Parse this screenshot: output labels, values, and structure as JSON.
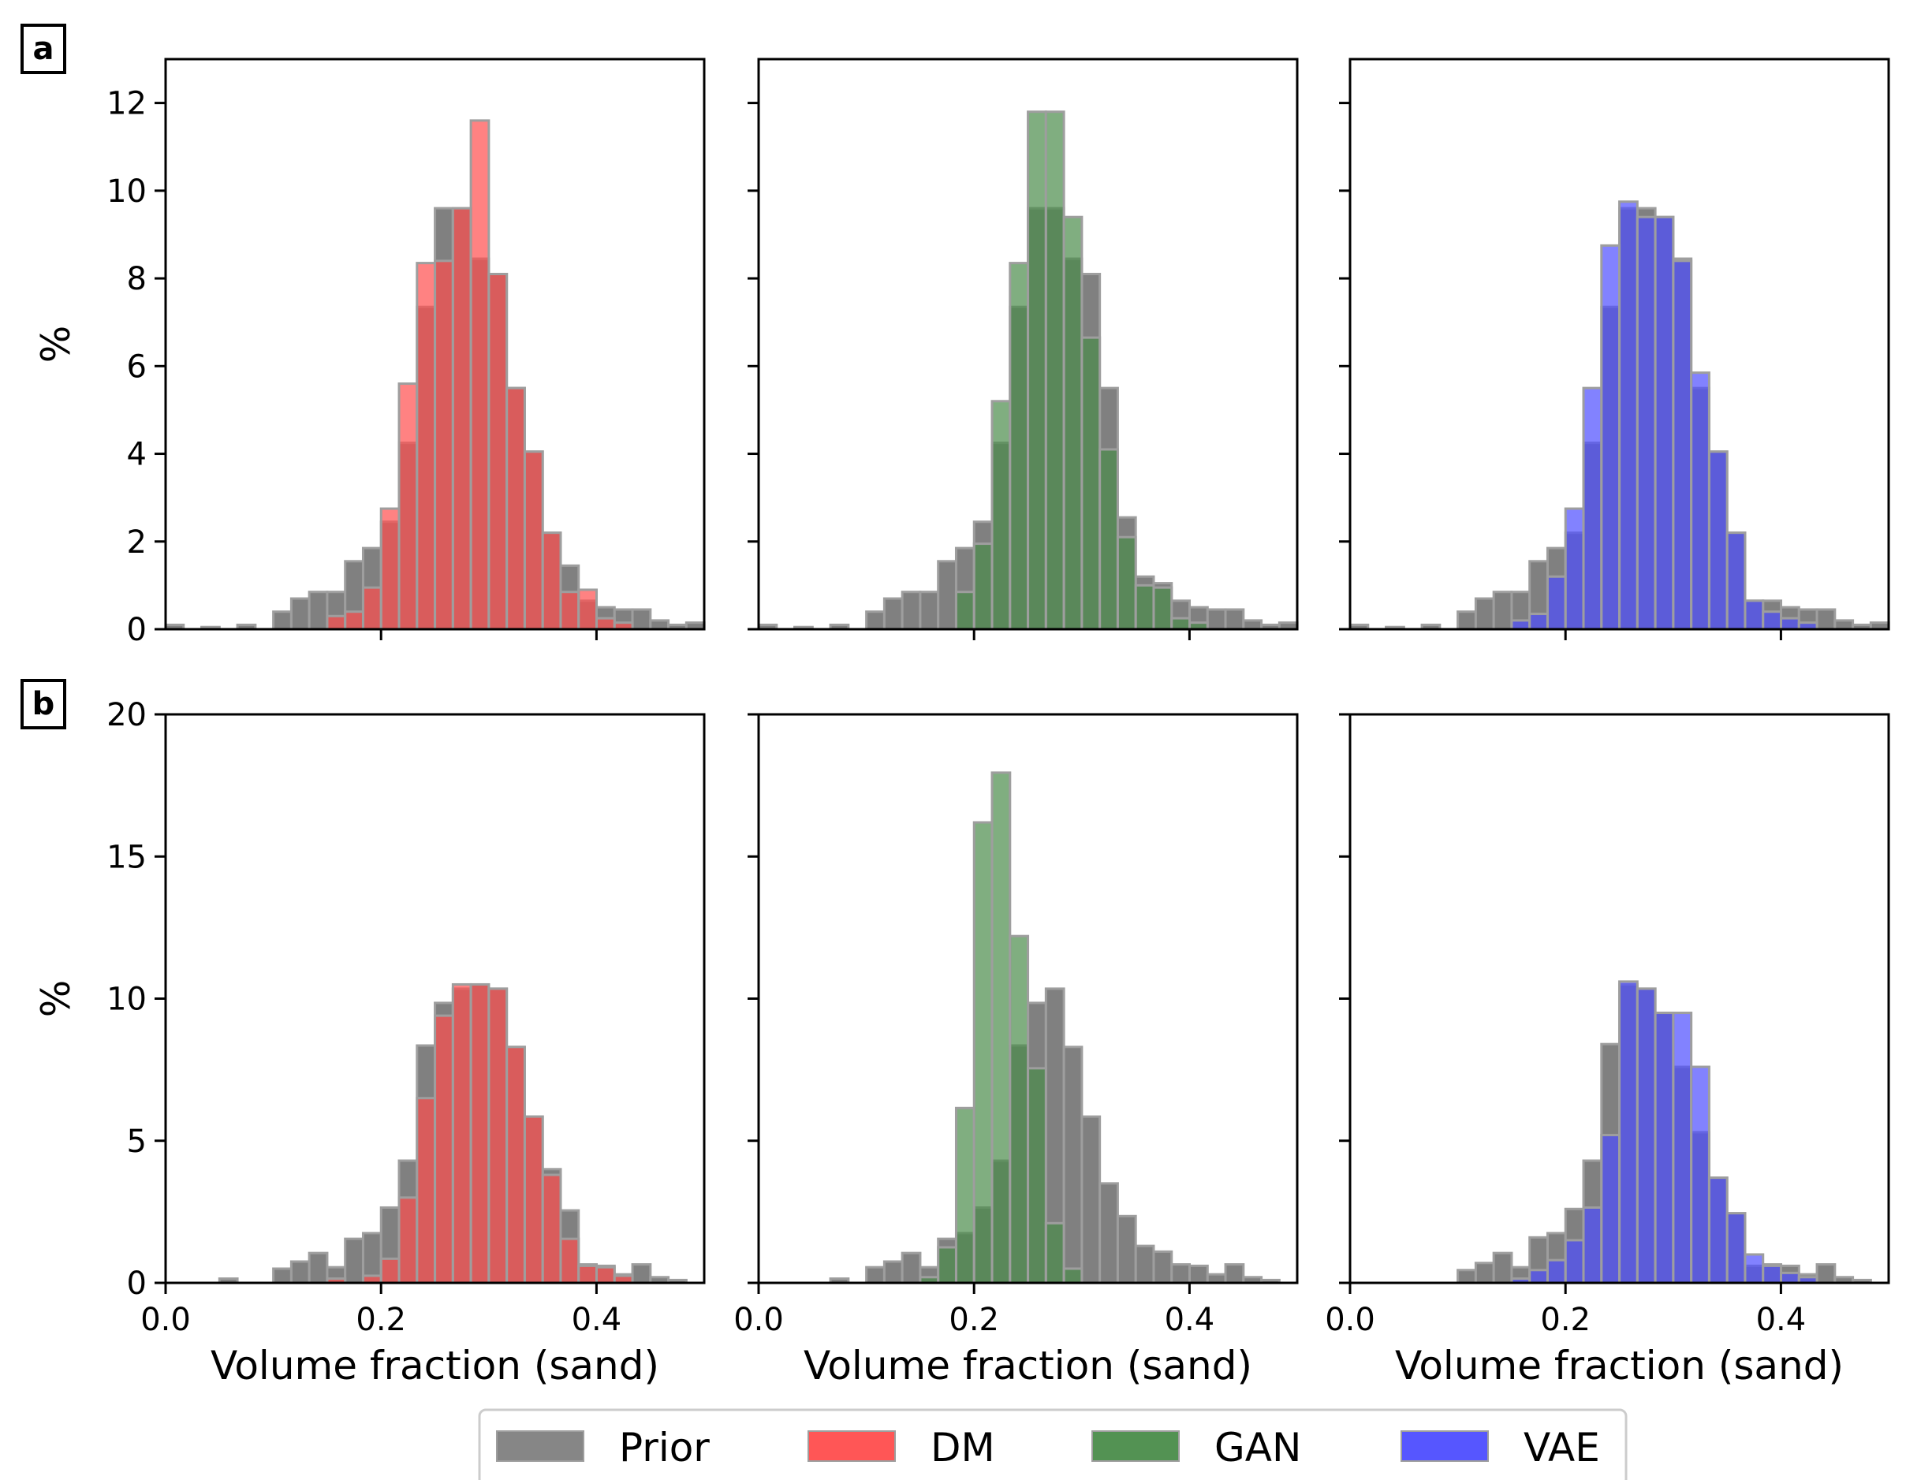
{
  "colors": {
    "Prior": "#808080",
    "DM": "#ff4d4d",
    "GAN": "#4a8c4a",
    "VAE": "#4d4dff",
    "bar_edge": "#9e9e9e"
  },
  "legend": [
    {
      "label": "Prior",
      "color": "#808080"
    },
    {
      "label": "DM",
      "color": "#ff4d4d"
    },
    {
      "label": "GAN",
      "color": "#4a8c4a"
    },
    {
      "label": "VAE",
      "color": "#4d4dff"
    }
  ],
  "panel_labels": [
    "a",
    "b"
  ],
  "chart_data": [
    {
      "type": "bar",
      "row": 0,
      "col": 0,
      "panel_label": "a",
      "xlim": [
        0,
        0.5
      ],
      "ylim": [
        0,
        13
      ],
      "xticks": [
        0.2,
        0.4
      ],
      "xtick_labels": [],
      "yticks": [
        0,
        2,
        4,
        6,
        8,
        10,
        12
      ],
      "ytick_labels": [
        "0",
        "2",
        "4",
        "6",
        "8",
        "10",
        "12"
      ],
      "xlabel": "",
      "ylabel": "%",
      "bin_start": 0,
      "bin_width": 0.01667,
      "series": [
        {
          "name": "Prior",
          "values": [
            0.1,
            0,
            0.05,
            0,
            0.1,
            0,
            0.4,
            0.7,
            0.85,
            0.85,
            1.55,
            1.85,
            2.45,
            4.25,
            7.35,
            9.6,
            9.6,
            8.45,
            8.1,
            5.5,
            4.05,
            2.2,
            1.45,
            0.65,
            0.5,
            0.45,
            0.45,
            0.2,
            0.1,
            0.15
          ]
        },
        {
          "name": "DM",
          "values": [
            0,
            0,
            0,
            0,
            0,
            0,
            0,
            0,
            0,
            0.3,
            0.4,
            0.95,
            2.75,
            5.6,
            8.35,
            8.4,
            9.6,
            11.6,
            8.1,
            5.5,
            4.05,
            2.2,
            0.85,
            0.9,
            0.25,
            0.15,
            0,
            0,
            0,
            0
          ]
        }
      ]
    },
    {
      "type": "bar",
      "row": 0,
      "col": 1,
      "xlim": [
        0,
        0.5
      ],
      "ylim": [
        0,
        13
      ],
      "xticks": [
        0.2,
        0.4
      ],
      "xtick_labels": [],
      "yticks": [
        0,
        2,
        4,
        6,
        8,
        10,
        12
      ],
      "ytick_labels": [],
      "xlabel": "",
      "ylabel": "",
      "bin_start": 0,
      "bin_width": 0.01667,
      "series": [
        {
          "name": "Prior",
          "values": [
            0.1,
            0,
            0.05,
            0,
            0.1,
            0,
            0.4,
            0.7,
            0.85,
            0.85,
            1.55,
            1.85,
            2.45,
            4.25,
            7.35,
            9.6,
            9.6,
            8.45,
            8.1,
            5.5,
            2.55,
            1.2,
            1.05,
            0.65,
            0.5,
            0.45,
            0.45,
            0.2,
            0.1,
            0.15
          ]
        },
        {
          "name": "GAN",
          "values": [
            0,
            0,
            0,
            0,
            0,
            0,
            0,
            0,
            0,
            0,
            0,
            0.85,
            1.95,
            5.2,
            8.35,
            11.8,
            11.8,
            9.4,
            6.65,
            4.1,
            2.1,
            1.0,
            0.95,
            0.25,
            0.15,
            0,
            0,
            0,
            0,
            0
          ]
        }
      ]
    },
    {
      "type": "bar",
      "row": 0,
      "col": 2,
      "xlim": [
        0,
        0.5
      ],
      "ylim": [
        0,
        13
      ],
      "xticks": [
        0.2,
        0.4
      ],
      "xtick_labels": [],
      "yticks": [
        0,
        2,
        4,
        6,
        8,
        10,
        12
      ],
      "ytick_labels": [],
      "xlabel": "",
      "ylabel": "",
      "bin_start": 0,
      "bin_width": 0.01667,
      "series": [
        {
          "name": "Prior",
          "values": [
            0.1,
            0,
            0.05,
            0,
            0.1,
            0,
            0.4,
            0.7,
            0.85,
            0.85,
            1.55,
            1.85,
            2.2,
            4.25,
            7.35,
            9.6,
            9.6,
            9.4,
            8.45,
            5.5,
            4.05,
            2.2,
            0.65,
            0.65,
            0.5,
            0.45,
            0.45,
            0.2,
            0.1,
            0.15
          ]
        },
        {
          "name": "VAE",
          "values": [
            0,
            0,
            0,
            0,
            0,
            0,
            0,
            0,
            0,
            0.2,
            0.35,
            1.2,
            2.75,
            5.5,
            8.75,
            9.75,
            9.4,
            9.4,
            8.4,
            5.85,
            4.05,
            2.2,
            0.65,
            0.4,
            0.25,
            0.15,
            0,
            0,
            0,
            0
          ]
        }
      ]
    },
    {
      "type": "bar",
      "row": 1,
      "col": 0,
      "panel_label": "b",
      "xlim": [
        0,
        0.5
      ],
      "ylim": [
        0,
        20
      ],
      "xticks": [
        0,
        0.2,
        0.4
      ],
      "xtick_labels": [
        "0.0",
        "0.2",
        "0.4"
      ],
      "yticks": [
        0,
        5,
        10,
        15,
        20
      ],
      "ytick_labels": [
        "0",
        "5",
        "10",
        "15",
        "20"
      ],
      "xlabel": "Volume fraction (sand)",
      "ylabel": "%",
      "bin_start": 0,
      "bin_width": 0.01667,
      "series": [
        {
          "name": "Prior",
          "values": [
            0,
            0,
            0,
            0.15,
            0,
            0,
            0.5,
            0.75,
            1.05,
            0.55,
            1.55,
            1.75,
            2.65,
            4.3,
            8.35,
            9.85,
            10.35,
            10.5,
            10.35,
            8.3,
            5.85,
            4.0,
            2.55,
            0.65,
            0.6,
            0.3,
            0.65,
            0.2,
            0.1,
            0
          ]
        },
        {
          "name": "DM",
          "values": [
            0,
            0,
            0,
            0,
            0,
            0,
            0,
            0,
            0,
            0.15,
            0,
            0.25,
            0.85,
            3.0,
            6.5,
            9.4,
            10.5,
            10.5,
            10.35,
            8.3,
            5.85,
            3.8,
            1.55,
            0.6,
            0.55,
            0.25,
            0,
            0,
            0,
            0
          ]
        }
      ]
    },
    {
      "type": "bar",
      "row": 1,
      "col": 1,
      "xlim": [
        0,
        0.5
      ],
      "ylim": [
        0,
        20
      ],
      "xticks": [
        0,
        0.2,
        0.4
      ],
      "xtick_labels": [
        "0.0",
        "0.2",
        "0.4"
      ],
      "yticks": [
        0,
        5,
        10,
        15,
        20
      ],
      "ytick_labels": [],
      "xlabel": "Volume fraction (sand)",
      "ylabel": "",
      "bin_start": 0,
      "bin_width": 0.01667,
      "series": [
        {
          "name": "Prior",
          "values": [
            0,
            0,
            0,
            0,
            0.15,
            0,
            0.55,
            0.75,
            1.05,
            0.55,
            1.55,
            1.75,
            2.65,
            4.3,
            8.35,
            9.85,
            10.35,
            8.3,
            5.85,
            3.5,
            2.35,
            1.3,
            1.1,
            0.65,
            0.6,
            0.3,
            0.65,
            0.2,
            0.1,
            0
          ]
        },
        {
          "name": "GAN",
          "values": [
            0,
            0,
            0,
            0,
            0,
            0,
            0,
            0,
            0,
            0.2,
            1.25,
            6.15,
            16.2,
            17.95,
            12.2,
            7.55,
            2.1,
            0.5,
            0,
            0,
            0,
            0,
            0,
            0,
            0,
            0,
            0,
            0,
            0,
            0
          ]
        }
      ]
    },
    {
      "type": "bar",
      "row": 1,
      "col": 2,
      "xlim": [
        0,
        0.5
      ],
      "ylim": [
        0,
        20
      ],
      "xticks": [
        0,
        0.2,
        0.4
      ],
      "xtick_labels": [
        "0.0",
        "0.2",
        "0.4"
      ],
      "yticks": [
        0,
        5,
        10,
        15,
        20
      ],
      "ytick_labels": [],
      "xlabel": "Volume fraction (sand)",
      "ylabel": "",
      "bin_start": 0,
      "bin_width": 0.01667,
      "series": [
        {
          "name": "Prior",
          "values": [
            0,
            0,
            0,
            0,
            0,
            0,
            0.45,
            0.7,
            1.05,
            0.55,
            1.6,
            1.75,
            2.6,
            4.3,
            8.4,
            10.5,
            10.35,
            9.5,
            7.6,
            5.3,
            3.7,
            2.45,
            0.6,
            0.65,
            0.6,
            0.3,
            0.65,
            0.2,
            0.1,
            0
          ]
        },
        {
          "name": "VAE",
          "values": [
            0,
            0,
            0,
            0,
            0,
            0,
            0,
            0,
            0,
            0.15,
            0.45,
            0.8,
            1.5,
            2.65,
            5.2,
            10.6,
            10.35,
            9.5,
            9.5,
            7.6,
            3.7,
            2.45,
            1.0,
            0.6,
            0.35,
            0.2,
            0,
            0,
            0,
            0
          ]
        }
      ]
    }
  ]
}
